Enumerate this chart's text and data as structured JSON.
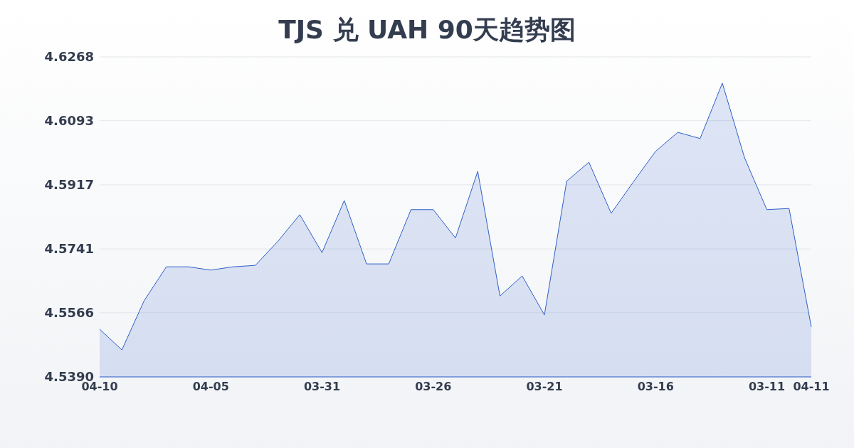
{
  "chart_data": {
    "type": "area",
    "title": "TJS 兑 UAH 90天趋势图",
    "categories": [
      "04-10",
      null,
      null,
      null,
      null,
      "04-05",
      null,
      null,
      null,
      null,
      "03-31",
      null,
      null,
      null,
      null,
      "03-26",
      null,
      null,
      null,
      null,
      "03-21",
      null,
      null,
      null,
      null,
      "03-16",
      null,
      null,
      null,
      null,
      "03-11",
      null,
      "04-11"
    ],
    "values": [
      4.5521,
      4.5464,
      4.5599,
      4.5692,
      4.5692,
      4.5683,
      4.5692,
      4.5696,
      4.5761,
      4.5835,
      4.5731,
      4.5874,
      4.57,
      4.57,
      4.5849,
      4.5849,
      4.5771,
      4.5954,
      4.5612,
      4.5667,
      4.556,
      4.5927,
      4.5979,
      4.5839,
      4.5925,
      4.6009,
      4.6061,
      4.6044,
      4.6196,
      4.5991,
      4.5849,
      4.5852,
      4.5527
    ],
    "color": "#2f5fc8",
    "ylim": [
      4.539,
      4.6268
    ],
    "yticks": [
      {
        "value": 4.539,
        "label": "4.5390"
      },
      4.5566,
      4.5741,
      4.5917,
      4.6093,
      4.6268
    ],
    "grid": "y"
  }
}
